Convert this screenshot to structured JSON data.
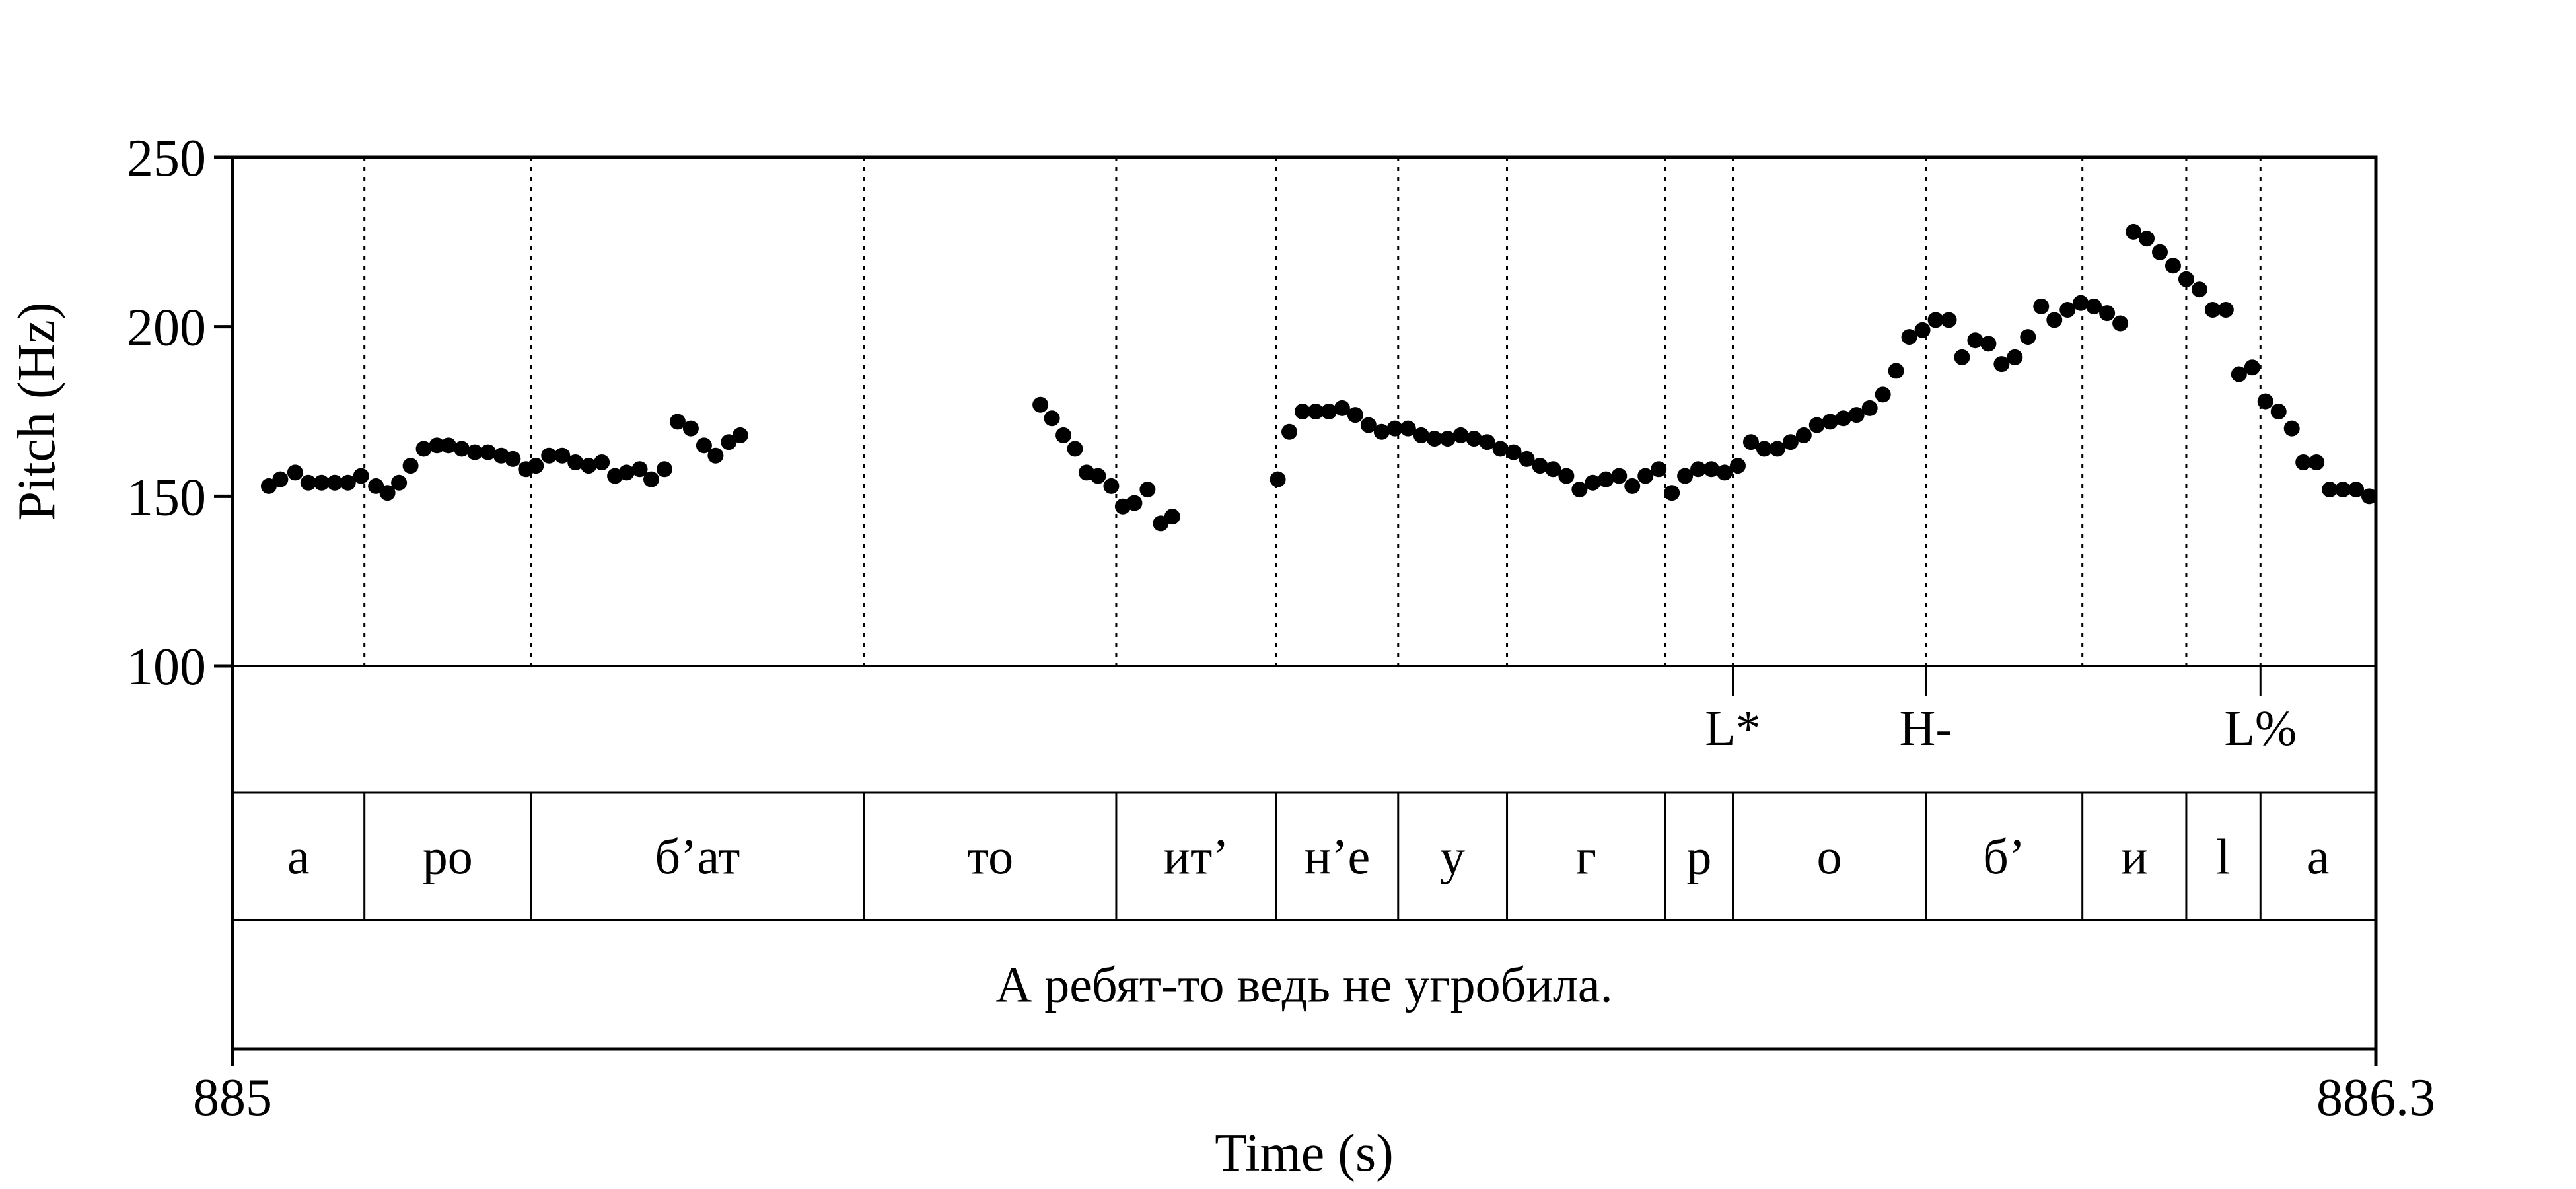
{
  "chart_data": {
    "type": "scatter",
    "title": "",
    "xlabel": "Time (s)",
    "ylabel": "Pitch (Hz)",
    "xlim": [
      885,
      886.3
    ],
    "ylim": [
      100,
      250
    ],
    "x_ticks": [
      "885",
      "886.3"
    ],
    "y_ticks": [
      "250",
      "200",
      "150",
      "100"
    ],
    "series": [
      {
        "points": [
          [
            885.022,
            153
          ],
          [
            885.029,
            155
          ],
          [
            885.038,
            157
          ],
          [
            885.046,
            154
          ],
          [
            885.054,
            154
          ],
          [
            885.062,
            154
          ],
          [
            885.07,
            154
          ],
          [
            885.078,
            156
          ],
          [
            885.087,
            153
          ],
          [
            885.094,
            151
          ],
          [
            885.101,
            154
          ],
          [
            885.108,
            159
          ],
          [
            885.116,
            164
          ],
          [
            885.124,
            165
          ],
          [
            885.131,
            165
          ],
          [
            885.139,
            164
          ],
          [
            885.147,
            163
          ],
          [
            885.155,
            163
          ],
          [
            885.163,
            162
          ],
          [
            885.17,
            161
          ],
          [
            885.178,
            158
          ],
          [
            885.184,
            159
          ],
          [
            885.192,
            162
          ],
          [
            885.2,
            162
          ],
          [
            885.208,
            160
          ],
          [
            885.216,
            159
          ],
          [
            885.224,
            160
          ],
          [
            885.232,
            156
          ],
          [
            885.239,
            157
          ],
          [
            885.247,
            158
          ],
          [
            885.254,
            155
          ],
          [
            885.262,
            158
          ],
          [
            885.27,
            172
          ],
          [
            885.278,
            170
          ],
          [
            885.286,
            165
          ],
          [
            885.293,
            162
          ],
          [
            885.301,
            166
          ],
          [
            885.308,
            168
          ],
          [
            885.49,
            177
          ],
          [
            885.497,
            173
          ],
          [
            885.504,
            168
          ],
          [
            885.511,
            164
          ],
          [
            885.518,
            157
          ],
          [
            885.525,
            156
          ],
          [
            885.533,
            153
          ],
          [
            885.54,
            147
          ],
          [
            885.547,
            148
          ],
          [
            885.555,
            152
          ],
          [
            885.563,
            142
          ],
          [
            885.57,
            144
          ],
          [
            885.634,
            155
          ],
          [
            885.641,
            169
          ],
          [
            885.649,
            175
          ],
          [
            885.657,
            175
          ],
          [
            885.665,
            175
          ],
          [
            885.673,
            176
          ],
          [
            885.681,
            174
          ],
          [
            885.689,
            171
          ],
          [
            885.697,
            169
          ],
          [
            885.705,
            170
          ],
          [
            885.713,
            170
          ],
          [
            885.721,
            168
          ],
          [
            885.729,
            167
          ],
          [
            885.737,
            167
          ],
          [
            885.745,
            168
          ],
          [
            885.753,
            167
          ],
          [
            885.761,
            166
          ],
          [
            885.769,
            164
          ],
          [
            885.777,
            163
          ],
          [
            885.785,
            161
          ],
          [
            885.793,
            159
          ],
          [
            885.801,
            158
          ],
          [
            885.809,
            156
          ],
          [
            885.817,
            152
          ],
          [
            885.825,
            154
          ],
          [
            885.833,
            155
          ],
          [
            885.841,
            156
          ],
          [
            885.849,
            153
          ],
          [
            885.857,
            156
          ],
          [
            885.865,
            158
          ],
          [
            885.873,
            151
          ],
          [
            885.881,
            156
          ],
          [
            885.889,
            158
          ],
          [
            885.897,
            158
          ],
          [
            885.905,
            157
          ],
          [
            885.913,
            159
          ],
          [
            885.921,
            166
          ],
          [
            885.929,
            164
          ],
          [
            885.937,
            164
          ],
          [
            885.945,
            166
          ],
          [
            885.953,
            168
          ],
          [
            885.961,
            171
          ],
          [
            885.969,
            172
          ],
          [
            885.977,
            173
          ],
          [
            885.985,
            174
          ],
          [
            885.993,
            176
          ],
          [
            886.001,
            180
          ],
          [
            886.009,
            187
          ],
          [
            886.017,
            197
          ],
          [
            886.025,
            199
          ],
          [
            886.033,
            202
          ],
          [
            886.041,
            202
          ],
          [
            886.049,
            191
          ],
          [
            886.057,
            196
          ],
          [
            886.065,
            195
          ],
          [
            886.073,
            189
          ],
          [
            886.081,
            191
          ],
          [
            886.089,
            197
          ],
          [
            886.097,
            206
          ],
          [
            886.105,
            202
          ],
          [
            886.113,
            205
          ],
          [
            886.121,
            207
          ],
          [
            886.129,
            206
          ],
          [
            886.137,
            204
          ],
          [
            886.145,
            201
          ],
          [
            886.153,
            228
          ],
          [
            886.161,
            226
          ],
          [
            886.169,
            222
          ],
          [
            886.177,
            218
          ],
          [
            886.185,
            214
          ],
          [
            886.193,
            211
          ],
          [
            886.201,
            205
          ],
          [
            886.209,
            205
          ],
          [
            886.217,
            186
          ],
          [
            886.225,
            188
          ],
          [
            886.233,
            178
          ],
          [
            886.241,
            175
          ],
          [
            886.249,
            170
          ],
          [
            886.256,
            160
          ],
          [
            886.264,
            160
          ],
          [
            886.272,
            152
          ],
          [
            886.28,
            152
          ],
          [
            886.288,
            152
          ],
          [
            886.296,
            150
          ]
        ]
      }
    ],
    "segment_boundaries": [
      885.08,
      885.181,
      885.383,
      885.536,
      885.633,
      885.707,
      885.773,
      885.869,
      885.91,
      886.027,
      886.122,
      886.185,
      886.23
    ],
    "tones": [
      {
        "time": 885.91,
        "label": "L*"
      },
      {
        "time": 886.027,
        "label": "H-"
      },
      {
        "time": 886.23,
        "label": "L%"
      }
    ],
    "segments": [
      {
        "start": 885.0,
        "end": 885.08,
        "label": "а"
      },
      {
        "start": 885.08,
        "end": 885.181,
        "label": "ро"
      },
      {
        "start": 885.181,
        "end": 885.383,
        "label": "б’ат"
      },
      {
        "start": 885.383,
        "end": 885.536,
        "label": "то"
      },
      {
        "start": 885.536,
        "end": 885.633,
        "label": "ит’"
      },
      {
        "start": 885.633,
        "end": 885.707,
        "label": "н’е"
      },
      {
        "start": 885.707,
        "end": 885.773,
        "label": "у"
      },
      {
        "start": 885.773,
        "end": 885.869,
        "label": "г"
      },
      {
        "start": 885.869,
        "end": 885.91,
        "label": "р"
      },
      {
        "start": 885.91,
        "end": 886.027,
        "label": "о"
      },
      {
        "start": 886.027,
        "end": 886.122,
        "label": "б’"
      },
      {
        "start": 886.122,
        "end": 886.185,
        "label": "и"
      },
      {
        "start": 886.185,
        "end": 886.23,
        "label": "l"
      },
      {
        "start": 886.23,
        "end": 886.3,
        "label": "а"
      }
    ],
    "sentence": "А ребят-то ведь не угробила."
  }
}
